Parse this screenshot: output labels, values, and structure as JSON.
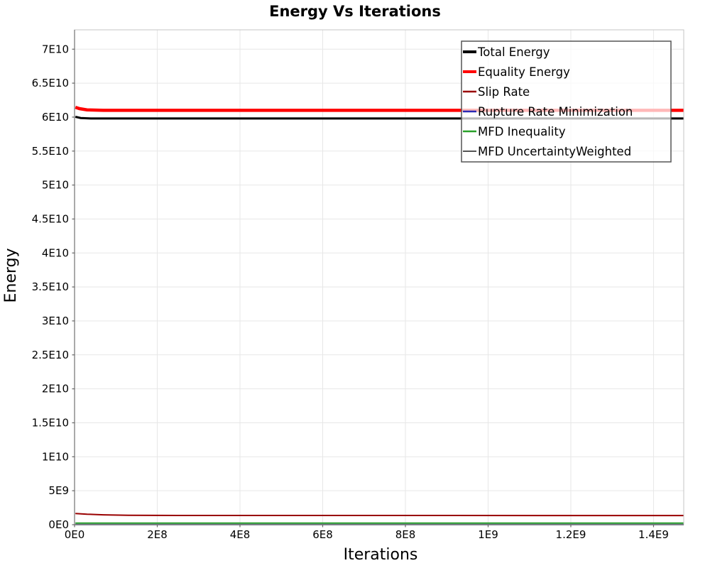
{
  "title": "Energy Vs Iterations",
  "chart_data": {
    "type": "line",
    "title": "Energy Vs Iterations",
    "xlabel": "Iterations",
    "ylabel": "Energy",
    "xlim": [
      0,
      1473000000
    ],
    "ylim": [
      0,
      72850000000
    ],
    "grid": true,
    "legend_position": "top-right",
    "x_ticks": [
      {
        "value": 0,
        "label": "0E0"
      },
      {
        "value": 200000000,
        "label": "2E8"
      },
      {
        "value": 400000000,
        "label": "4E8"
      },
      {
        "value": 600000000,
        "label": "6E8"
      },
      {
        "value": 800000000,
        "label": "8E8"
      },
      {
        "value": 1000000000,
        "label": "1E9"
      },
      {
        "value": 1200000000,
        "label": "1.2E9"
      },
      {
        "value": 1400000000,
        "label": "1.4E9"
      }
    ],
    "y_ticks": [
      {
        "value": 0,
        "label": "0E0"
      },
      {
        "value": 5000000000,
        "label": "5E9"
      },
      {
        "value": 10000000000,
        "label": "1E10"
      },
      {
        "value": 15000000000,
        "label": "1.5E10"
      },
      {
        "value": 20000000000,
        "label": "2E10"
      },
      {
        "value": 25000000000,
        "label": "2.5E10"
      },
      {
        "value": 30000000000,
        "label": "3E10"
      },
      {
        "value": 35000000000,
        "label": "3.5E10"
      },
      {
        "value": 40000000000,
        "label": "4E10"
      },
      {
        "value": 45000000000,
        "label": "4.5E10"
      },
      {
        "value": 50000000000,
        "label": "5E10"
      },
      {
        "value": 55000000000,
        "label": "5.5E10"
      },
      {
        "value": 60000000000,
        "label": "6E10"
      },
      {
        "value": 65000000000,
        "label": "6.5E10"
      },
      {
        "value": 70000000000,
        "label": "7E10"
      }
    ],
    "series": [
      {
        "name": "Total Energy",
        "color": "#000000",
        "width": 3,
        "swatch_width": 4,
        "points": [
          [
            2000000,
            60050000000
          ],
          [
            15000000,
            59870000000
          ],
          [
            40000000,
            59800000000
          ],
          [
            1473000000,
            59800000000
          ]
        ]
      },
      {
        "name": "Equality Energy",
        "color": "#ff0000",
        "width": 4.5,
        "swatch_width": 4,
        "points": [
          [
            2000000,
            61450000000
          ],
          [
            12000000,
            61250000000
          ],
          [
            30000000,
            61070000000
          ],
          [
            70000000,
            61000000000
          ],
          [
            1473000000,
            61000000000
          ]
        ]
      },
      {
        "name": "Slip Rate",
        "color": "#990000",
        "width": 2,
        "swatch_width": 2.5,
        "points": [
          [
            2000000,
            1650000000
          ],
          [
            30000000,
            1550000000
          ],
          [
            70000000,
            1450000000
          ],
          [
            130000000,
            1380000000
          ],
          [
            250000000,
            1360000000
          ],
          [
            1473000000,
            1350000000
          ]
        ]
      },
      {
        "name": "Rupture Rate Minimization",
        "color": "#2a2ab4",
        "width": 2,
        "swatch_width": 2.5,
        "points": [
          [
            2000000,
            30000000
          ],
          [
            1473000000,
            30000000
          ]
        ]
      },
      {
        "name": "MFD Inequality",
        "color": "#28a028",
        "width": 2,
        "swatch_width": 2.5,
        "points": [
          [
            2000000,
            240000000
          ],
          [
            1473000000,
            240000000
          ]
        ]
      },
      {
        "name": "MFD UncertaintyWeighted",
        "color": "#555555",
        "width": 1.5,
        "swatch_width": 2,
        "points": [
          [
            2000000,
            15000000
          ],
          [
            1473000000,
            15000000
          ]
        ]
      }
    ]
  },
  "colors": {
    "background": "#ffffff",
    "grid": "#e7e7e7",
    "plot_border": "#c4c4c4",
    "axis_line": "#858585",
    "tick_mark": "#666666",
    "legend_border": "#555555",
    "legend_bg": "#ffffff",
    "text": "#000000"
  },
  "legend_bg_opacity": 0.72
}
